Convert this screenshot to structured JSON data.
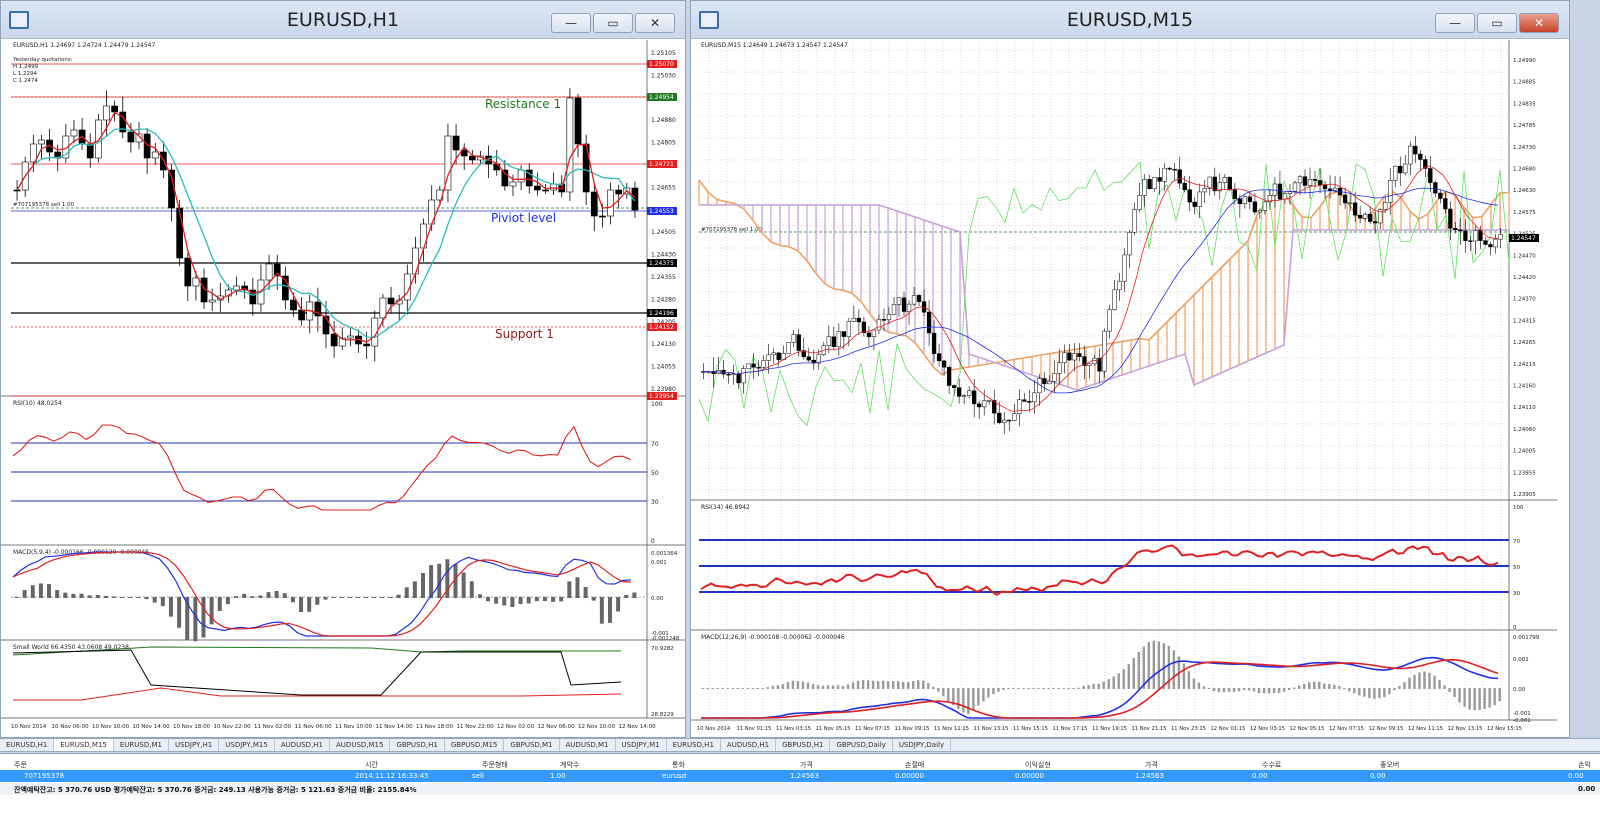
{
  "left_window": {
    "title": "EURUSD,H1",
    "info": "EURUSD,H1  1.24697 1.24724 1.24479 1.24547",
    "quotations": [
      "Yesterday quotations:",
      "H 1.2499",
      "L 1.2294",
      "C 1.2474"
    ],
    "order_label": "#707195378 sell 1.00",
    "annotations": {
      "resistance": "Resistance 1",
      "pivot": "Piviot level",
      "support": "Support 1"
    },
    "price_ticks": [
      "1.25105",
      "1.25030",
      "1.24955",
      "1.24880",
      "1.24805",
      "1.24730",
      "1.24655",
      "1.24580",
      "1.24505",
      "1.24430",
      "1.24355",
      "1.24280",
      "1.24205",
      "1.24130",
      "1.24055",
      "1.23980"
    ],
    "price_tags": [
      {
        "value": "1.25070",
        "color": "#e02020"
      },
      {
        "value": "1.24954",
        "color": "#1f7a1f"
      },
      {
        "value": "1.24721",
        "color": "#e02020"
      },
      {
        "value": "1.24553",
        "color": "#2030e0"
      },
      {
        "value": "1.24375",
        "color": "#000000"
      },
      {
        "value": "1.24196",
        "color": "#000000"
      },
      {
        "value": "1.24152",
        "color": "#e02020"
      },
      {
        "value": "1.23954",
        "color": "#e02020"
      }
    ],
    "rsi_label": "RSI(10) 48.0254",
    "rsi_ticks": [
      "100",
      "70",
      "50",
      "30",
      "0"
    ],
    "macd_label": "MACD(5,9,4) -0.000166 -0.000120 -0.000046",
    "macd_ticks": [
      "0.001364",
      "0.001",
      "0.00",
      "-0.001",
      "-0.001248"
    ],
    "sw_label": "Small World 66.4350 43.0608 49.0238",
    "sw_ticks": [
      "70.9282",
      "28.8229"
    ],
    "time_labels": [
      "10 Nov 2014",
      "10 Nov 06:00",
      "10 Nov 10:00",
      "10 Nov 14:00",
      "10 Nov 18:00",
      "10 Nov 22:00",
      "11 Nov 02:00",
      "11 Nov 06:00",
      "11 Nov 10:00",
      "11 Nov 14:00",
      "11 Nov 18:00",
      "11 Nov 22:00",
      "12 Nov 02:00",
      "12 Nov 06:00",
      "12 Nov 10:00",
      "12 Nov 14:00"
    ]
  },
  "right_window": {
    "title": "EURUSD,M15",
    "info": "EURUSD,M15  1.24649 1.24673 1.24547 1.24547",
    "order_label": "#707195378 sell 1.00",
    "price_ticks": [
      "1.24990",
      "1.24885",
      "1.24835",
      "1.24785",
      "1.24730",
      "1.24680",
      "1.24630",
      "1.24575",
      "1.24525",
      "1.24470",
      "1.24420",
      "1.24370",
      "1.24315",
      "1.24265",
      "1.24215",
      "1.24160",
      "1.24110",
      "1.24060",
      "1.24005",
      "1.23955",
      "1.23905"
    ],
    "price_tag": "1.24547",
    "rsi_label": "RSI(14) 46.8942",
    "rsi_ticks": [
      "100",
      "70",
      "50",
      "30",
      "0"
    ],
    "macd_label": "MACD(12,26,9) -0.000108 -0.000062 -0.000046",
    "macd_ticks": [
      "0.001799",
      "0.001",
      "0.00",
      "-0.001",
      "-0.001"
    ],
    "time_labels": [
      "10 Nov 2014",
      "11 Nov 01:15",
      "11 Nov 03:15",
      "11 Nov 05:15",
      "11 Nov 07:15",
      "11 Nov 09:15",
      "11 Nov 11:15",
      "11 Nov 13:15",
      "11 Nov 15:15",
      "11 Nov 17:15",
      "11 Nov 19:15",
      "11 Nov 21:15",
      "11 Nov 23:15",
      "12 Nov 01:15",
      "12 Nov 03:15",
      "12 Nov 05:15",
      "12 Nov 07:15",
      "12 Nov 09:15",
      "12 Nov 11:15",
      "12 Nov 13:15",
      "12 Nov 15:15"
    ]
  },
  "window_buttons": {
    "minimize": "—",
    "maximize": "▭",
    "close": "✕"
  },
  "tabs": [
    "EURUSD,H1",
    "EURUSD,M15",
    "EURUSD,M1",
    "USDJPY,H1",
    "USDJPY,M15",
    "AUDUSD,H1",
    "AUDUSD,M15",
    "GBPUSD,H1",
    "GBPUSD,M15",
    "GBPUSD,M1",
    "AUDUSD,M1",
    "USDJPY,M1",
    "EURUSD,H1",
    "AUDUSD,H1",
    "GBPUSD,H1",
    "GBPUSD,Daily",
    "USDJPY,Daily"
  ],
  "active_tab": 1,
  "terminal": {
    "headers": [
      "주문",
      "시간",
      "주문형태",
      "계약수",
      "통화",
      "가격",
      "손절매",
      "이익실현",
      "가격",
      "수수료",
      "좋오버",
      "손익"
    ],
    "row": [
      "707195378",
      "2014.11.12 16:33:45",
      "sell",
      "1.00",
      "eurusd",
      "1.24563",
      "0.00000",
      "0.00000",
      "1.24563",
      "0.00",
      "0.00",
      "0.00"
    ],
    "footer": "잔액예탁잔고: 5 370.76 USD  평가예탁잔고: 5 370.76  증거금: 249.13  사용가능 증거금: 5 121.63  증거금 비율: 2155.84%",
    "footer_total": "0.00"
  },
  "colors": {
    "bull": "#ffffff",
    "bear": "#000000",
    "ma_fast": "#e02020",
    "ma_slow": "#2bbcbc",
    "rsi_line": "#e02020",
    "levels": "#2030c0",
    "cloud_bear": "#c8a0d8",
    "cloud_bull": "#f0a060",
    "chikou": "#60e060"
  }
}
